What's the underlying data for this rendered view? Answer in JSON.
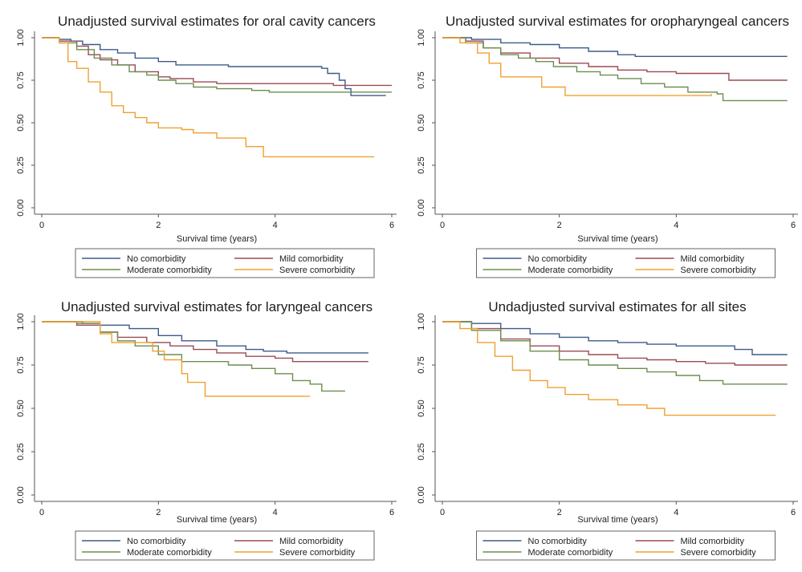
{
  "colors": {
    "No comorbidity": "#3d5a8a",
    "Mild comorbidity": "#9c4a55",
    "Moderate comorbidity": "#6b8f4e",
    "Severe comorbidity": "#f0a030"
  },
  "chart_data": [
    {
      "type": "line",
      "title": "Unadjusted survival estimates for oral cavity cancers",
      "xlabel": "Survival time (years)",
      "ylabel": "",
      "xlim": [
        0,
        6
      ],
      "ylim": [
        0,
        1
      ],
      "xticks": [
        "0",
        "2",
        "4",
        "6"
      ],
      "yticks": [
        "0.00",
        "0.25",
        "0.50",
        "0.75",
        "1.00"
      ],
      "legend": "bottom",
      "series": [
        {
          "name": "No comorbidity",
          "points": [
            [
              0,
              1.0
            ],
            [
              0.3,
              0.99
            ],
            [
              0.5,
              0.98
            ],
            [
              0.7,
              0.96
            ],
            [
              1.0,
              0.93
            ],
            [
              1.3,
              0.91
            ],
            [
              1.6,
              0.88
            ],
            [
              2.0,
              0.86
            ],
            [
              2.3,
              0.84
            ],
            [
              2.8,
              0.84
            ],
            [
              3.2,
              0.83
            ],
            [
              4.0,
              0.83
            ],
            [
              4.8,
              0.82
            ],
            [
              4.9,
              0.79
            ],
            [
              5.1,
              0.75
            ],
            [
              5.2,
              0.7
            ],
            [
              5.3,
              0.66
            ],
            [
              5.9,
              0.66
            ]
          ]
        },
        {
          "name": "Mild comorbidity",
          "points": [
            [
              0,
              1.0
            ],
            [
              0.3,
              0.98
            ],
            [
              0.6,
              0.95
            ],
            [
              0.8,
              0.9
            ],
            [
              1.0,
              0.87
            ],
            [
              1.3,
              0.84
            ],
            [
              1.6,
              0.8
            ],
            [
              2.0,
              0.77
            ],
            [
              2.2,
              0.76
            ],
            [
              2.6,
              0.74
            ],
            [
              3.0,
              0.73
            ],
            [
              4.0,
              0.73
            ],
            [
              5.0,
              0.72
            ],
            [
              5.5,
              0.72
            ],
            [
              6.0,
              0.72
            ]
          ]
        },
        {
          "name": "Moderate comorbidity",
          "points": [
            [
              0,
              1.0
            ],
            [
              0.3,
              0.97
            ],
            [
              0.6,
              0.93
            ],
            [
              0.9,
              0.88
            ],
            [
              1.2,
              0.84
            ],
            [
              1.5,
              0.8
            ],
            [
              1.8,
              0.78
            ],
            [
              2.0,
              0.75
            ],
            [
              2.3,
              0.73
            ],
            [
              2.6,
              0.71
            ],
            [
              3.0,
              0.7
            ],
            [
              3.6,
              0.69
            ],
            [
              3.9,
              0.68
            ],
            [
              4.5,
              0.68
            ],
            [
              5.0,
              0.68
            ],
            [
              6.0,
              0.68
            ]
          ]
        },
        {
          "name": "Severe comorbidity",
          "points": [
            [
              0,
              1.0
            ],
            [
              0.3,
              0.97
            ],
            [
              0.45,
              0.86
            ],
            [
              0.6,
              0.82
            ],
            [
              0.8,
              0.74
            ],
            [
              1.0,
              0.68
            ],
            [
              1.2,
              0.6
            ],
            [
              1.4,
              0.56
            ],
            [
              1.6,
              0.53
            ],
            [
              1.8,
              0.5
            ],
            [
              2.0,
              0.47
            ],
            [
              2.4,
              0.46
            ],
            [
              2.6,
              0.44
            ],
            [
              3.0,
              0.41
            ],
            [
              3.5,
              0.36
            ],
            [
              3.8,
              0.3
            ],
            [
              4.3,
              0.3
            ],
            [
              5.7,
              0.3
            ]
          ]
        }
      ]
    },
    {
      "type": "line",
      "title": "Unadjusted survival estimates for oropharyngeal cancers",
      "xlabel": "Survival time (years)",
      "ylabel": "",
      "xlim": [
        0,
        6
      ],
      "ylim": [
        0,
        1
      ],
      "xticks": [
        "0",
        "2",
        "4",
        "6"
      ],
      "yticks": [
        "0.00",
        "0.25",
        "0.50",
        "0.75",
        "1.00"
      ],
      "legend": "bottom",
      "series": [
        {
          "name": "No comorbidity",
          "points": [
            [
              0,
              1.0
            ],
            [
              0.5,
              0.99
            ],
            [
              1.0,
              0.97
            ],
            [
              1.5,
              0.96
            ],
            [
              2.0,
              0.94
            ],
            [
              2.5,
              0.92
            ],
            [
              3.0,
              0.9
            ],
            [
              3.3,
              0.89
            ],
            [
              4.0,
              0.89
            ],
            [
              5.0,
              0.89
            ],
            [
              5.9,
              0.89
            ]
          ]
        },
        {
          "name": "Mild comorbidity",
          "points": [
            [
              0,
              1.0
            ],
            [
              0.4,
              0.98
            ],
            [
              0.7,
              0.94
            ],
            [
              1.0,
              0.91
            ],
            [
              1.5,
              0.88
            ],
            [
              2.0,
              0.85
            ],
            [
              2.5,
              0.83
            ],
            [
              3.0,
              0.81
            ],
            [
              3.5,
              0.8
            ],
            [
              4.0,
              0.79
            ],
            [
              4.5,
              0.79
            ],
            [
              4.9,
              0.75
            ],
            [
              5.9,
              0.75
            ]
          ]
        },
        {
          "name": "Moderate comorbidity",
          "points": [
            [
              0,
              1.0
            ],
            [
              0.4,
              0.97
            ],
            [
              0.7,
              0.94
            ],
            [
              1.0,
              0.9
            ],
            [
              1.3,
              0.88
            ],
            [
              1.6,
              0.86
            ],
            [
              1.9,
              0.83
            ],
            [
              2.3,
              0.8
            ],
            [
              2.7,
              0.78
            ],
            [
              3.0,
              0.76
            ],
            [
              3.4,
              0.73
            ],
            [
              3.8,
              0.71
            ],
            [
              4.2,
              0.68
            ],
            [
              4.7,
              0.67
            ],
            [
              4.8,
              0.63
            ],
            [
              5.9,
              0.63
            ]
          ]
        },
        {
          "name": "Severe comorbidity",
          "points": [
            [
              0,
              1.0
            ],
            [
              0.3,
              0.97
            ],
            [
              0.6,
              0.91
            ],
            [
              0.8,
              0.85
            ],
            [
              1.0,
              0.77
            ],
            [
              1.3,
              0.77
            ],
            [
              1.7,
              0.71
            ],
            [
              2.1,
              0.66
            ],
            [
              3.0,
              0.66
            ],
            [
              4.0,
              0.66
            ],
            [
              4.6,
              0.67
            ]
          ]
        }
      ]
    },
    {
      "type": "line",
      "title": "Unadjusted survival estimates for laryngeal cancers",
      "xlabel": "Survival time (years)",
      "ylabel": "",
      "xlim": [
        0,
        6
      ],
      "ylim": [
        0,
        1
      ],
      "xticks": [
        "0",
        "2",
        "4",
        "6"
      ],
      "yticks": [
        "0.00",
        "0.25",
        "0.50",
        "0.75",
        "1.00"
      ],
      "legend": "bottom",
      "series": [
        {
          "name": "No comorbidity",
          "points": [
            [
              0,
              1.0
            ],
            [
              0.7,
              0.99
            ],
            [
              1.0,
              0.98
            ],
            [
              1.5,
              0.96
            ],
            [
              2.0,
              0.92
            ],
            [
              2.4,
              0.89
            ],
            [
              3.0,
              0.86
            ],
            [
              3.5,
              0.84
            ],
            [
              3.8,
              0.83
            ],
            [
              4.2,
              0.82
            ],
            [
              5.0,
              0.82
            ],
            [
              5.6,
              0.82
            ]
          ]
        },
        {
          "name": "Mild comorbidity",
          "points": [
            [
              0,
              1.0
            ],
            [
              0.6,
              0.98
            ],
            [
              1.0,
              0.94
            ],
            [
              1.3,
              0.91
            ],
            [
              1.8,
              0.88
            ],
            [
              2.2,
              0.86
            ],
            [
              2.6,
              0.84
            ],
            [
              3.0,
              0.82
            ],
            [
              3.5,
              0.8
            ],
            [
              4.0,
              0.79
            ],
            [
              4.3,
              0.77
            ],
            [
              5.0,
              0.77
            ],
            [
              5.6,
              0.77
            ]
          ]
        },
        {
          "name": "Moderate comorbidity",
          "points": [
            [
              0,
              1.0
            ],
            [
              0.6,
              0.99
            ],
            [
              1.0,
              0.94
            ],
            [
              1.3,
              0.89
            ],
            [
              1.6,
              0.86
            ],
            [
              2.0,
              0.81
            ],
            [
              2.4,
              0.77
            ],
            [
              3.0,
              0.77
            ],
            [
              3.2,
              0.75
            ],
            [
              3.6,
              0.73
            ],
            [
              4.0,
              0.7
            ],
            [
              4.3,
              0.66
            ],
            [
              4.6,
              0.64
            ],
            [
              4.8,
              0.6
            ],
            [
              5.2,
              0.6
            ]
          ]
        },
        {
          "name": "Severe comorbidity",
          "points": [
            [
              0,
              1.0
            ],
            [
              0.9,
              1.0
            ],
            [
              1.0,
              0.93
            ],
            [
              1.2,
              0.88
            ],
            [
              1.6,
              0.88
            ],
            [
              1.9,
              0.83
            ],
            [
              2.1,
              0.78
            ],
            [
              2.3,
              0.78
            ],
            [
              2.4,
              0.7
            ],
            [
              2.5,
              0.65
            ],
            [
              2.7,
              0.65
            ],
            [
              2.8,
              0.57
            ],
            [
              3.5,
              0.57
            ],
            [
              4.6,
              0.57
            ]
          ]
        }
      ]
    },
    {
      "type": "line",
      "title": "Undadjusted survival estimates for all sites",
      "xlabel": "Survival time (years)",
      "ylabel": "",
      "xlim": [
        0,
        6
      ],
      "ylim": [
        0,
        1
      ],
      "xticks": [
        "0",
        "2",
        "4",
        "6"
      ],
      "yticks": [
        "0.00",
        "0.25",
        "0.50",
        "0.75",
        "1.00"
      ],
      "legend": "bottom",
      "series": [
        {
          "name": "No comorbidity",
          "points": [
            [
              0,
              1.0
            ],
            [
              0.5,
              0.99
            ],
            [
              1.0,
              0.96
            ],
            [
              1.5,
              0.93
            ],
            [
              2.0,
              0.91
            ],
            [
              2.5,
              0.89
            ],
            [
              3.0,
              0.88
            ],
            [
              3.5,
              0.87
            ],
            [
              4.0,
              0.86
            ],
            [
              4.5,
              0.86
            ],
            [
              5.0,
              0.84
            ],
            [
              5.3,
              0.81
            ],
            [
              5.9,
              0.81
            ]
          ]
        },
        {
          "name": "Mild comorbidity",
          "points": [
            [
              0,
              1.0
            ],
            [
              0.5,
              0.96
            ],
            [
              1.0,
              0.9
            ],
            [
              1.5,
              0.86
            ],
            [
              2.0,
              0.83
            ],
            [
              2.5,
              0.81
            ],
            [
              3.0,
              0.79
            ],
            [
              3.5,
              0.78
            ],
            [
              4.0,
              0.77
            ],
            [
              4.5,
              0.76
            ],
            [
              5.0,
              0.75
            ],
            [
              5.9,
              0.75
            ]
          ]
        },
        {
          "name": "Moderate comorbidity",
          "points": [
            [
              0,
              1.0
            ],
            [
              0.5,
              0.95
            ],
            [
              1.0,
              0.89
            ],
            [
              1.5,
              0.83
            ],
            [
              2.0,
              0.78
            ],
            [
              2.5,
              0.75
            ],
            [
              3.0,
              0.73
            ],
            [
              3.5,
              0.71
            ],
            [
              4.0,
              0.69
            ],
            [
              4.4,
              0.66
            ],
            [
              4.8,
              0.64
            ],
            [
              5.9,
              0.64
            ]
          ]
        },
        {
          "name": "Severe comorbidity",
          "points": [
            [
              0,
              1.0
            ],
            [
              0.3,
              0.96
            ],
            [
              0.6,
              0.88
            ],
            [
              0.9,
              0.8
            ],
            [
              1.2,
              0.72
            ],
            [
              1.5,
              0.66
            ],
            [
              1.8,
              0.62
            ],
            [
              2.1,
              0.58
            ],
            [
              2.5,
              0.55
            ],
            [
              3.0,
              0.52
            ],
            [
              3.5,
              0.5
            ],
            [
              3.8,
              0.46
            ],
            [
              4.5,
              0.46
            ],
            [
              5.7,
              0.46
            ]
          ]
        }
      ]
    }
  ]
}
